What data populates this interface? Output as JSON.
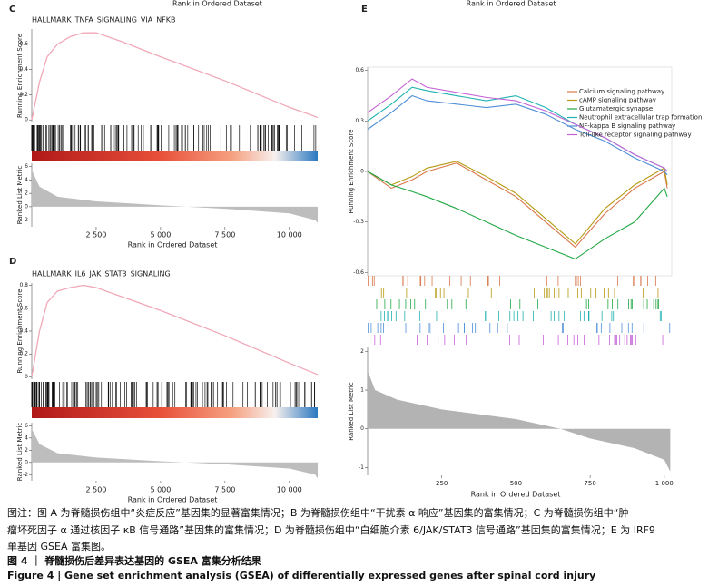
{
  "panels": [
    {
      "label": "C",
      "top_label": "Rank in Ordered Dataset",
      "title": "HALLMARK_TNFA_SIGNALING_VIA_NFKB",
      "es_label": "Running Enrichment Score",
      "metric_label": "Ranked List Metric",
      "x_label": "Rank in Ordered Dataset",
      "xlim": [
        0,
        11100
      ],
      "xticks": [
        {
          "value": 2500,
          "label": "2 500"
        },
        {
          "value": 5000,
          "label": "5 000"
        },
        {
          "value": 7500,
          "label": "7 500"
        },
        {
          "value": 10000,
          "label": "10 000"
        }
      ],
      "es_ylim": [
        -0.02,
        0.72
      ],
      "es_yticks": [
        0,
        0.2,
        0.4,
        0.6
      ],
      "es_x": [
        0,
        300,
        600,
        1000,
        1500,
        2000,
        2500,
        3500,
        5000,
        7500,
        10000,
        11100
      ],
      "es": [
        0,
        0.3,
        0.5,
        0.6,
        0.66,
        0.69,
        0.69,
        0.62,
        0.5,
        0.31,
        0.1,
        0.02
      ],
      "metric_ylim": [
        -3,
        6.5
      ],
      "metric_yticks": [
        -2,
        0,
        2,
        4,
        6
      ],
      "metric_x": [
        0,
        300,
        1000,
        2500,
        5000,
        7500,
        10000,
        11000,
        11100
      ],
      "metric": [
        5.5,
        3,
        1.5,
        0.8,
        0.2,
        -0.3,
        -1,
        -2,
        -2.4
      ]
    },
    {
      "label": "D",
      "title": "HALLMARK_IL6_JAK_STAT3_SIGNALING",
      "es_label": "Running Enrichment Score",
      "metric_label": "Ranked List Metric",
      "x_label": "Rank in Ordered Dataset",
      "xlim": [
        0,
        11100
      ],
      "xticks": [
        {
          "value": 2500,
          "label": "2 500"
        },
        {
          "value": 5000,
          "label": "5 000"
        },
        {
          "value": 7500,
          "label": "7 500"
        },
        {
          "value": 10000,
          "label": "10 000"
        }
      ],
      "es_ylim": [
        -0.02,
        0.82
      ],
      "es_yticks": [
        0,
        0.2,
        0.4,
        0.6,
        0.8
      ],
      "es_x": [
        0,
        300,
        600,
        1000,
        1500,
        2000,
        2500,
        3500,
        5000,
        7500,
        10000,
        11100
      ],
      "es": [
        0,
        0.4,
        0.65,
        0.75,
        0.78,
        0.8,
        0.78,
        0.7,
        0.58,
        0.36,
        0.12,
        0.02
      ],
      "metric_ylim": [
        -3,
        6.5
      ],
      "metric_yticks": [
        -2,
        0,
        2,
        4,
        6
      ],
      "metric_x": [
        0,
        300,
        1000,
        2500,
        5000,
        7500,
        10000,
        11000,
        11100
      ],
      "metric": [
        5.5,
        3,
        1.5,
        0.8,
        0.2,
        -0.3,
        -1,
        -2,
        -2.6
      ]
    }
  ],
  "panel_e": {
    "label": "E",
    "top_label": "Rank in Ordered Dataset",
    "es_label": "Running Enrichment Score",
    "metric_label": "Ranked List Metric",
    "x_label": "Rank in Ordered Dataset",
    "xlim": [
      0,
      1025
    ],
    "xticks": [
      250,
      500,
      750,
      {
        "value": 1000,
        "label": "1 000"
      }
    ],
    "es_ylim": [
      -0.62,
      0.62
    ],
    "es_yticks": [
      0.6,
      0.3,
      0,
      -0.3,
      -0.6
    ],
    "x": [
      0,
      80,
      150,
      200,
      300,
      400,
      500,
      600,
      700,
      800,
      900,
      1000,
      1010
    ],
    "series": [
      {
        "name": "Calcium signaling pathway",
        "color": "#d9774a",
        "values": [
          0,
          -0.1,
          -0.05,
          0,
          0.05,
          -0.05,
          -0.15,
          -0.3,
          -0.45,
          -0.25,
          -0.1,
          0,
          -0.1
        ]
      },
      {
        "name": "cAMP signaling pathway",
        "color": "#b59a12",
        "values": [
          0,
          -0.08,
          -0.03,
          0.02,
          0.06,
          -0.03,
          -0.13,
          -0.28,
          -0.43,
          -0.22,
          -0.08,
          0.02,
          -0.08
        ]
      },
      {
        "name": "Glutamatergic synapse",
        "color": "#23a845",
        "values": [
          0,
          -0.08,
          -0.12,
          -0.15,
          -0.22,
          -0.3,
          -0.38,
          -0.45,
          -0.52,
          -0.4,
          -0.3,
          -0.1,
          -0.15
        ]
      },
      {
        "name": "Neutrophil extracellular trap formation",
        "color": "#1fb2b0",
        "values": [
          0.3,
          0.4,
          0.5,
          0.48,
          0.45,
          0.42,
          0.45,
          0.38,
          0.28,
          0.2,
          0.1,
          0.02,
          0
        ]
      },
      {
        "name": "NF-kappa B signaling pathway",
        "color": "#4f8fd6",
        "values": [
          0.25,
          0.35,
          0.45,
          0.42,
          0.4,
          0.38,
          0.4,
          0.34,
          0.25,
          0.18,
          0.08,
          0,
          -0.02
        ]
      },
      {
        "name": "Toll-like receptor signaling pathway",
        "color": "#c562d6",
        "values": [
          0.35,
          0.45,
          0.55,
          0.5,
          0.47,
          0.44,
          0.42,
          0.36,
          0.28,
          0.2,
          0.1,
          0.02,
          0
        ]
      }
    ],
    "metric_ylim": [
      -1.2,
      2.1
    ],
    "metric_yticks": [
      2,
      1,
      0,
      -1
    ],
    "metric_x": [
      0,
      25,
      100,
      250,
      500,
      650,
      750,
      900,
      1000,
      1020
    ],
    "metric": [
      1.5,
      1.0,
      0.75,
      0.5,
      0.25,
      0,
      -0.25,
      -0.5,
      -0.8,
      -1.1
    ]
  },
  "caption": {
    "lines": [
      "图注：图 A 为脊髓损伤组中“炎症反应”基因集的显著富集情况；B 为脊髓损伤组中“干扰素 α 响应”基因集的富集情况；C 为脊髓损伤组中“肿",
      "瘤坏死因子 α 通过核因子 κB 信号通路”基因集的富集情况；D 为脊髓损伤组中“白细胞介素 6/JAK/STAT3 信号通路”基因集的富集情况；E 为 IRF9",
      "单基因 GSEA 富集图。"
    ],
    "title_cn": "图 4 ｜ 脊髓损伤后差异表达基因的 GSEA 富集分析结果",
    "title_en": "Figure 4 | Gene set enrichment analysis (GSEA) of differentially expressed genes after spinal cord injury"
  }
}
